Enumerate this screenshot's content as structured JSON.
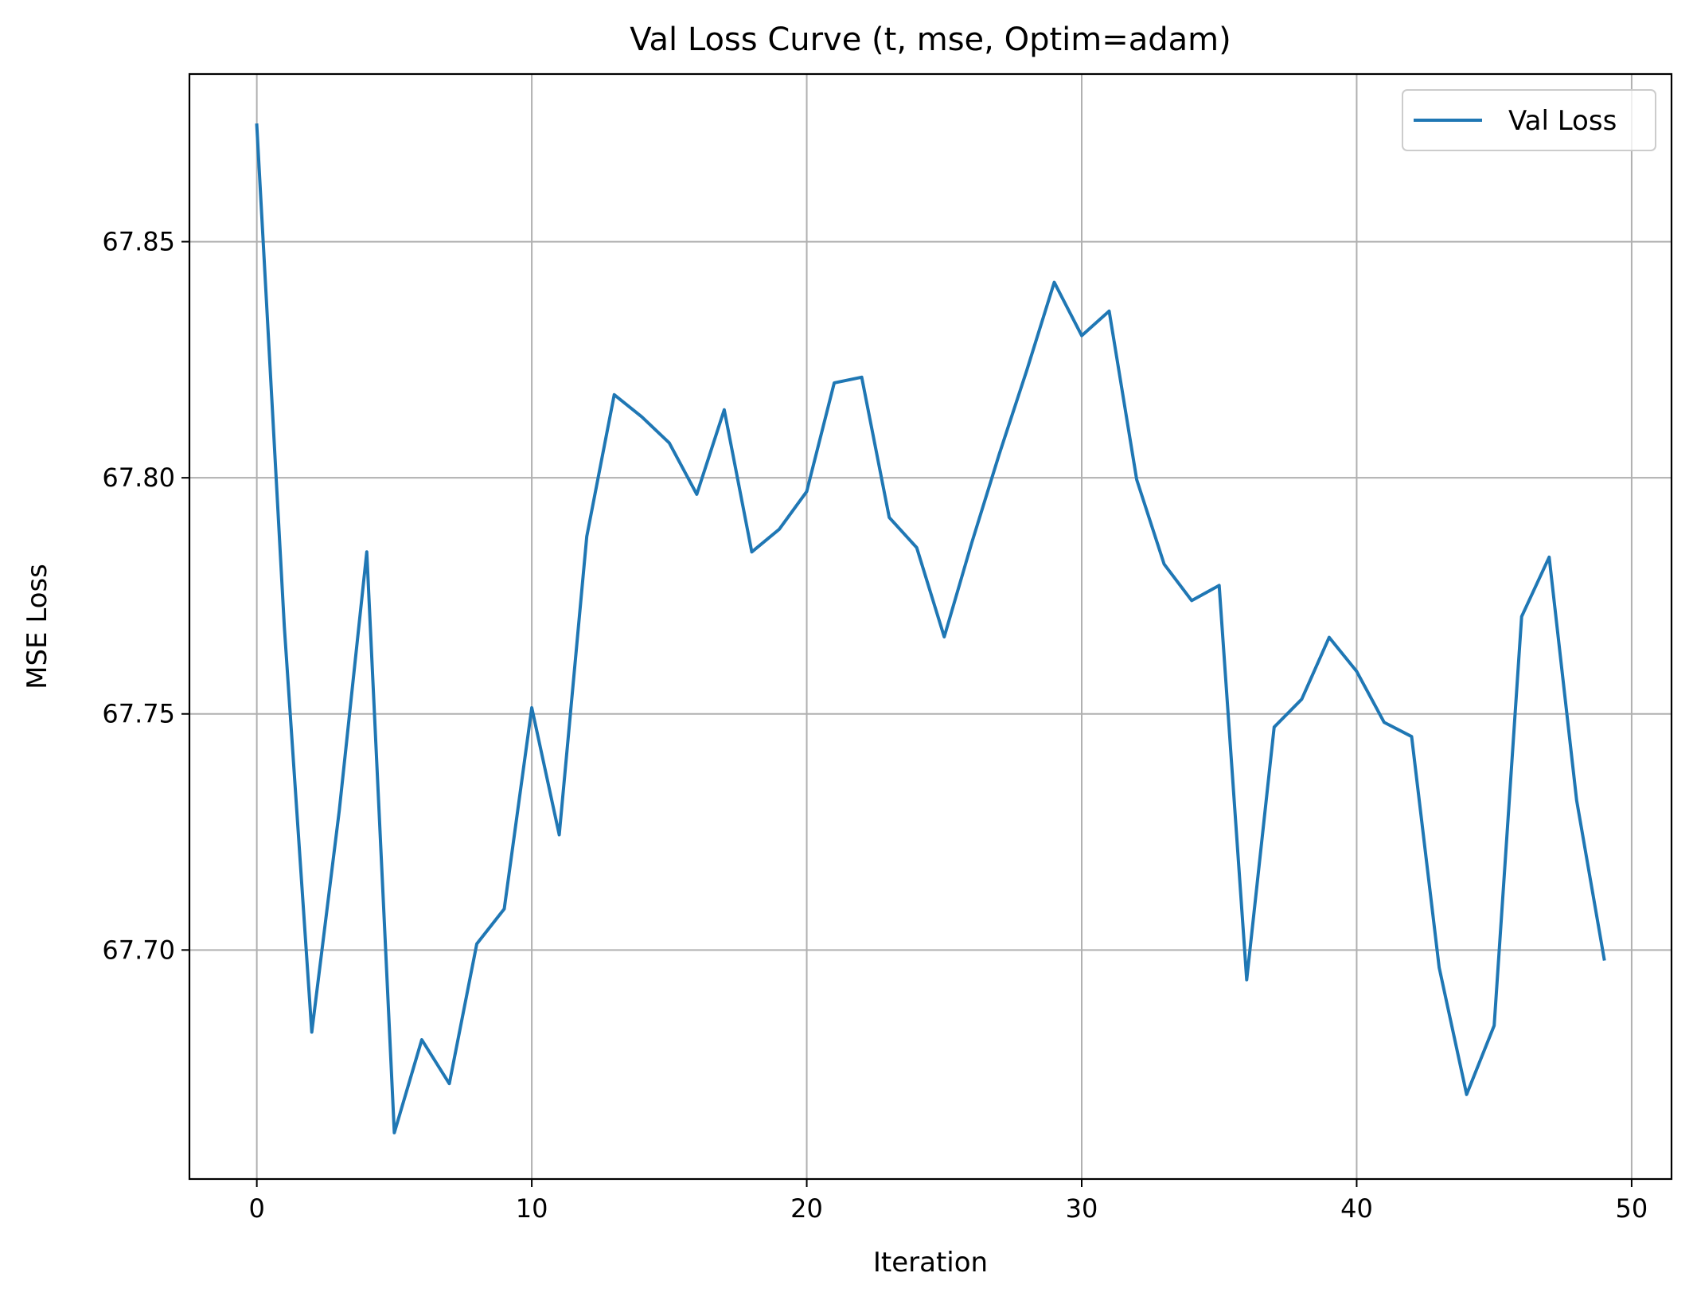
{
  "chart_data": {
    "type": "line",
    "title": "Val Loss Curve (t, mse, Optim=adam)",
    "xlabel": "Iteration",
    "ylabel": "MSE Loss",
    "xlim": [
      -2.45,
      51.45
    ],
    "ylim": [
      67.6515,
      67.8855
    ],
    "xticks": [
      0,
      10,
      20,
      30,
      40,
      50
    ],
    "yticks": [
      67.7,
      67.75,
      67.8,
      67.85
    ],
    "xtick_labels": [
      "0",
      "10",
      "20",
      "30",
      "40",
      "50"
    ],
    "ytick_labels": [
      "67.70",
      "67.75",
      "67.80",
      "67.85"
    ],
    "grid": true,
    "legend_position": "top-right",
    "series": [
      {
        "name": "Val Loss",
        "color": "#1f77b4",
        "x": [
          0,
          1,
          2,
          3,
          4,
          5,
          6,
          7,
          8,
          9,
          10,
          11,
          12,
          13,
          14,
          15,
          16,
          17,
          18,
          19,
          20,
          21,
          22,
          23,
          24,
          25,
          26,
          27,
          28,
          29,
          30,
          31,
          32,
          33,
          34,
          35,
          36,
          37,
          38,
          39,
          40,
          41,
          42,
          43,
          44,
          45,
          46,
          47,
          48,
          49
        ],
        "y": [
          67.8747,
          67.7685,
          67.6826,
          67.7296,
          67.7843,
          67.6613,
          67.681,
          67.6717,
          67.7013,
          67.7087,
          67.7513,
          67.7244,
          67.7876,
          67.8176,
          67.8129,
          67.8074,
          67.7965,
          67.8144,
          67.7843,
          67.7891,
          67.7971,
          67.8201,
          67.8213,
          67.7916,
          67.7852,
          67.7663,
          67.7862,
          67.805,
          67.8227,
          67.8414,
          67.8301,
          67.8353,
          67.7996,
          67.7817,
          67.774,
          67.7772,
          67.6937,
          67.7472,
          67.7531,
          67.7662,
          67.759,
          67.7482,
          67.7452,
          67.6963,
          67.6694,
          67.684,
          67.7706,
          67.7832,
          67.7317,
          67.6981
        ]
      }
    ]
  }
}
